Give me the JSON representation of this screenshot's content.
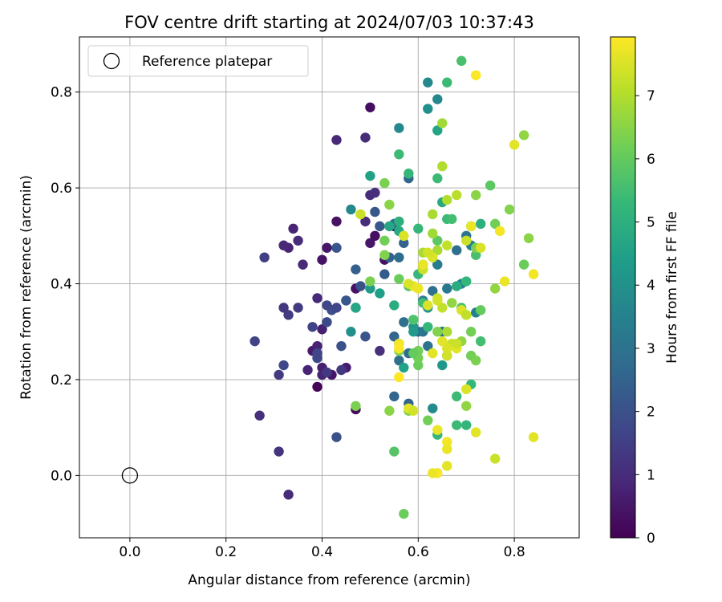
{
  "chart_data": {
    "type": "scatter",
    "title": "FOV centre drift starting at 2024/07/03 10:37:43",
    "xlabel": "Angular distance from reference (arcmin)",
    "ylabel": "Rotation from reference (arcmin)",
    "xlim": [
      -0.105,
      0.935
    ],
    "ylim": [
      -0.13,
      0.915
    ],
    "xticks": [
      0.0,
      0.2,
      0.4,
      0.6,
      0.8
    ],
    "xtick_labels": [
      "0.0",
      "0.2",
      "0.4",
      "0.6",
      "0.8"
    ],
    "yticks": [
      0.0,
      0.2,
      0.4,
      0.6,
      0.8
    ],
    "ytick_labels": [
      "0.0",
      "0.2",
      "0.4",
      "0.6",
      "0.8"
    ],
    "grid": true,
    "legend": {
      "location": "upper left",
      "entries": [
        {
          "label": "Reference platepar",
          "marker": "open circle",
          "x": 0.0,
          "y": 0.0
        }
      ]
    },
    "colorbar": {
      "label": "Hours from first FF file",
      "colormap": "viridis",
      "range": [
        0,
        7.93
      ],
      "ticks": [
        0,
        1,
        2,
        3,
        4,
        5,
        6,
        7
      ],
      "tick_labels": [
        "0",
        "1",
        "2",
        "3",
        "4",
        "5",
        "6",
        "7"
      ]
    },
    "points_format": "[x, y, hours]",
    "points": [
      [
        0.39,
        0.185,
        0.1
      ],
      [
        0.47,
        0.138,
        0.2
      ],
      [
        0.5,
        0.768,
        0.3
      ],
      [
        0.55,
        0.52,
        0.3
      ],
      [
        0.5,
        0.485,
        0.5
      ],
      [
        0.51,
        0.5,
        0.3
      ],
      [
        0.4,
        0.45,
        0.4
      ],
      [
        0.41,
        0.475,
        0.5
      ],
      [
        0.43,
        0.53,
        0.4
      ],
      [
        0.47,
        0.39,
        0.4
      ],
      [
        0.53,
        0.45,
        0.4
      ],
      [
        0.42,
        0.21,
        0.5
      ],
      [
        0.45,
        0.225,
        0.6
      ],
      [
        0.38,
        0.26,
        0.6
      ],
      [
        0.4,
        0.225,
        0.7
      ],
      [
        0.4,
        0.305,
        0.7
      ],
      [
        0.39,
        0.27,
        0.8
      ],
      [
        0.37,
        0.22,
        0.8
      ],
      [
        0.4,
        0.21,
        0.8
      ],
      [
        0.33,
        0.475,
        0.8
      ],
      [
        0.32,
        0.48,
        0.9
      ],
      [
        0.34,
        0.515,
        0.8
      ],
      [
        0.36,
        0.44,
        0.9
      ],
      [
        0.35,
        0.49,
        1.0
      ],
      [
        0.39,
        0.37,
        0.9
      ],
      [
        0.43,
        0.7,
        0.9
      ],
      [
        0.49,
        0.705,
        1.0
      ],
      [
        0.5,
        0.585,
        1.0
      ],
      [
        0.51,
        0.59,
        1.1
      ],
      [
        0.49,
        0.53,
        1.0
      ],
      [
        0.52,
        0.26,
        1.1
      ],
      [
        0.31,
        0.05,
        1.2
      ],
      [
        0.33,
        -0.04,
        1.0
      ],
      [
        0.41,
        0.215,
        1.3
      ],
      [
        0.44,
        0.22,
        1.3
      ],
      [
        0.32,
        0.35,
        1.3
      ],
      [
        0.35,
        0.35,
        1.4
      ],
      [
        0.33,
        0.335,
        1.4
      ],
      [
        0.27,
        0.125,
        1.1
      ],
      [
        0.31,
        0.21,
        1.4
      ],
      [
        0.28,
        0.455,
        1.5
      ],
      [
        0.26,
        0.28,
        1.6
      ],
      [
        0.32,
        0.23,
        1.7
      ],
      [
        0.39,
        0.245,
        1.7
      ],
      [
        0.39,
        0.255,
        1.7
      ],
      [
        0.38,
        0.31,
        1.6
      ],
      [
        0.41,
        0.32,
        1.8
      ],
      [
        0.42,
        0.345,
        1.9
      ],
      [
        0.41,
        0.355,
        1.7
      ],
      [
        0.43,
        0.35,
        1.7
      ],
      [
        0.44,
        0.27,
        2.0
      ],
      [
        0.43,
        0.08,
        2.0
      ],
      [
        0.43,
        0.475,
        2.1
      ],
      [
        0.45,
        0.365,
        2.1
      ],
      [
        0.45,
        0.365,
        2.2
      ],
      [
        0.48,
        0.395,
        2.0
      ],
      [
        0.49,
        0.29,
        2.1
      ],
      [
        0.51,
        0.55,
        2.2
      ],
      [
        0.52,
        0.52,
        2.2
      ],
      [
        0.47,
        0.35,
        2.5
      ],
      [
        0.47,
        0.43,
        2.4
      ],
      [
        0.53,
        0.42,
        2.3
      ],
      [
        0.54,
        0.455,
        2.5
      ],
      [
        0.55,
        0.165,
        2.6
      ],
      [
        0.55,
        0.29,
        2.6
      ],
      [
        0.56,
        0.275,
        2.5
      ],
      [
        0.56,
        0.24,
        2.9
      ],
      [
        0.57,
        0.32,
        2.9
      ],
      [
        0.58,
        0.255,
        2.9
      ],
      [
        0.58,
        0.15,
        2.6
      ],
      [
        0.58,
        0.62,
        2.6
      ],
      [
        0.57,
        0.485,
        2.5
      ],
      [
        0.56,
        0.455,
        2.8
      ],
      [
        0.55,
        0.525,
        2.8
      ],
      [
        0.6,
        0.3,
        2.7
      ],
      [
        0.61,
        0.3,
        3.1
      ],
      [
        0.62,
        0.27,
        3.0
      ],
      [
        0.63,
        0.385,
        2.9
      ],
      [
        0.65,
        0.3,
        2.8
      ],
      [
        0.66,
        0.25,
        3.1
      ],
      [
        0.68,
        0.47,
        2.9
      ],
      [
        0.69,
        0.4,
        3.5
      ],
      [
        0.7,
        0.5,
        3.1
      ],
      [
        0.71,
        0.48,
        3.4
      ],
      [
        0.72,
        0.34,
        3.5
      ],
      [
        0.66,
        0.39,
        3.2
      ],
      [
        0.64,
        0.44,
        3.3
      ],
      [
        0.61,
        0.365,
        3.4
      ],
      [
        0.62,
        0.82,
        3.7
      ],
      [
        0.64,
        0.785,
        3.7
      ],
      [
        0.62,
        0.765,
        4.0
      ],
      [
        0.56,
        0.725,
        3.7
      ],
      [
        0.64,
        0.72,
        4.6
      ],
      [
        0.59,
        0.31,
        4.1
      ],
      [
        0.62,
        0.35,
        4.1
      ],
      [
        0.59,
        0.3,
        4.3
      ],
      [
        0.57,
        0.225,
        4.5
      ],
      [
        0.63,
        0.14,
        3.8
      ],
      [
        0.65,
        0.23,
        4.2
      ],
      [
        0.5,
        0.625,
        4.5
      ],
      [
        0.5,
        0.39,
        4.3
      ],
      [
        0.46,
        0.555,
        3.7
      ],
      [
        0.46,
        0.3,
        4.0
      ],
      [
        0.47,
        0.35,
        4.7
      ],
      [
        0.55,
        0.355,
        4.9
      ],
      [
        0.52,
        0.38,
        4.4
      ],
      [
        0.54,
        0.52,
        4.7
      ],
      [
        0.56,
        0.51,
        4.8
      ],
      [
        0.56,
        0.53,
        5.0
      ],
      [
        0.6,
        0.515,
        5.3
      ],
      [
        0.65,
        0.57,
        4.8
      ],
      [
        0.68,
        0.395,
        4.9
      ],
      [
        0.7,
        0.405,
        5.2
      ],
      [
        0.73,
        0.525,
        5.0
      ],
      [
        0.71,
        0.52,
        5.4
      ],
      [
        0.69,
        0.35,
        5.7
      ],
      [
        0.73,
        0.28,
        5.5
      ],
      [
        0.71,
        0.19,
        5.3
      ],
      [
        0.7,
        0.105,
        5.2
      ],
      [
        0.68,
        0.105,
        5.4
      ],
      [
        0.64,
        0.085,
        5.3
      ],
      [
        0.64,
        0.005,
        5.4
      ],
      [
        0.68,
        0.165,
        5.4
      ],
      [
        0.64,
        0.62,
        5.4
      ],
      [
        0.56,
        0.67,
        5.4
      ],
      [
        0.58,
        0.63,
        5.3
      ],
      [
        0.66,
        0.82,
        5.4
      ],
      [
        0.69,
        0.865,
        5.6
      ],
      [
        0.6,
        0.42,
        5.3
      ],
      [
        0.61,
        0.36,
        5.5
      ],
      [
        0.62,
        0.31,
        5.3
      ],
      [
        0.6,
        0.26,
        6.2
      ],
      [
        0.59,
        0.325,
        5.7
      ],
      [
        0.58,
        0.395,
        5.8
      ],
      [
        0.61,
        0.44,
        5.9
      ],
      [
        0.64,
        0.49,
        5.9
      ],
      [
        0.66,
        0.535,
        5.4
      ],
      [
        0.67,
        0.535,
        5.5
      ],
      [
        0.72,
        0.46,
        5.6
      ],
      [
        0.72,
        0.475,
        6.3
      ],
      [
        0.71,
        0.3,
        6.2
      ],
      [
        0.71,
        0.25,
        6.2
      ],
      [
        0.72,
        0.24,
        6.3
      ],
      [
        0.73,
        0.345,
        6.0
      ],
      [
        0.75,
        0.605,
        5.9
      ],
      [
        0.76,
        0.525,
        6.2
      ],
      [
        0.79,
        0.555,
        6.4
      ],
      [
        0.82,
        0.44,
        6.1
      ],
      [
        0.83,
        0.495,
        6.5
      ],
      [
        0.82,
        0.71,
        6.6
      ],
      [
        0.76,
        0.39,
        6.6
      ],
      [
        0.72,
        0.585,
        6.5
      ],
      [
        0.7,
        0.335,
        6.7
      ],
      [
        0.7,
        0.145,
        6.6
      ],
      [
        0.69,
        0.28,
        6.6
      ],
      [
        0.67,
        0.36,
        6.6
      ],
      [
        0.66,
        0.3,
        6.9
      ],
      [
        0.64,
        0.3,
        6.4
      ],
      [
        0.62,
        0.115,
        6.2
      ],
      [
        0.6,
        0.23,
        6.1
      ],
      [
        0.6,
        0.245,
        6.2
      ],
      [
        0.59,
        0.255,
        6.0
      ],
      [
        0.58,
        0.135,
        6.4
      ],
      [
        0.56,
        0.41,
        6.1
      ],
      [
        0.55,
        0.05,
        5.8
      ],
      [
        0.57,
        -0.08,
        6.1
      ],
      [
        0.53,
        0.46,
        6.4
      ],
      [
        0.53,
        0.49,
        6.2
      ],
      [
        0.54,
        0.565,
        6.5
      ],
      [
        0.53,
        0.61,
        6.3
      ],
      [
        0.5,
        0.405,
        6.3
      ],
      [
        0.47,
        0.145,
        6.3
      ],
      [
        0.54,
        0.135,
        6.5
      ],
      [
        0.56,
        0.26,
        6.4
      ],
      [
        0.61,
        0.465,
        6.9
      ],
      [
        0.63,
        0.505,
        6.8
      ],
      [
        0.63,
        0.545,
        6.9
      ],
      [
        0.64,
        0.47,
        6.9
      ],
      [
        0.65,
        0.645,
        7.0
      ],
      [
        0.65,
        0.735,
        6.8
      ],
      [
        0.66,
        0.48,
        7.2
      ],
      [
        0.66,
        0.575,
        7.0
      ],
      [
        0.68,
        0.585,
        7.1
      ],
      [
        0.65,
        0.35,
        7.2
      ],
      [
        0.64,
        0.37,
        7.3
      ],
      [
        0.64,
        0.365,
        7.4
      ],
      [
        0.67,
        0.275,
        7.3
      ],
      [
        0.66,
        0.265,
        7.5
      ],
      [
        0.66,
        0.25,
        7.4
      ],
      [
        0.68,
        0.265,
        7.6
      ],
      [
        0.68,
        0.275,
        7.3
      ],
      [
        0.69,
        0.345,
        7.5
      ],
      [
        0.7,
        0.335,
        7.2
      ],
      [
        0.63,
        0.455,
        7.5
      ],
      [
        0.61,
        0.43,
        7.3
      ],
      [
        0.6,
        0.39,
        7.7
      ],
      [
        0.59,
        0.395,
        7.7
      ],
      [
        0.58,
        0.4,
        7.5
      ],
      [
        0.56,
        0.275,
        7.8
      ],
      [
        0.56,
        0.265,
        7.9
      ],
      [
        0.56,
        0.205,
        7.9
      ],
      [
        0.58,
        0.14,
        7.6
      ],
      [
        0.59,
        0.135,
        7.4
      ],
      [
        0.62,
        0.465,
        7.4
      ],
      [
        0.62,
        0.355,
        7.5
      ],
      [
        0.61,
        0.44,
        7.7
      ],
      [
        0.57,
        0.5,
        7.5
      ],
      [
        0.48,
        0.545,
        7.3
      ],
      [
        0.63,
        0.255,
        7.6
      ],
      [
        0.65,
        0.28,
        7.6
      ],
      [
        0.66,
        0.07,
        7.8
      ],
      [
        0.66,
        0.055,
        7.7
      ],
      [
        0.64,
        0.095,
        7.7
      ],
      [
        0.64,
        0.005,
        7.9
      ],
      [
        0.63,
        0.005,
        7.7
      ],
      [
        0.66,
        0.02,
        7.6
      ],
      [
        0.7,
        0.18,
        7.5
      ],
      [
        0.72,
        0.09,
        7.6
      ],
      [
        0.76,
        0.035,
        7.3
      ],
      [
        0.84,
        0.08,
        7.6
      ],
      [
        0.84,
        0.42,
        7.8
      ],
      [
        0.8,
        0.69,
        7.6
      ],
      [
        0.78,
        0.405,
        7.7
      ],
      [
        0.77,
        0.51,
        7.8
      ],
      [
        0.73,
        0.475,
        7.5
      ],
      [
        0.71,
        0.52,
        7.7
      ],
      [
        0.72,
        0.835,
        7.9
      ],
      [
        0.7,
        0.49,
        7.3
      ]
    ]
  }
}
